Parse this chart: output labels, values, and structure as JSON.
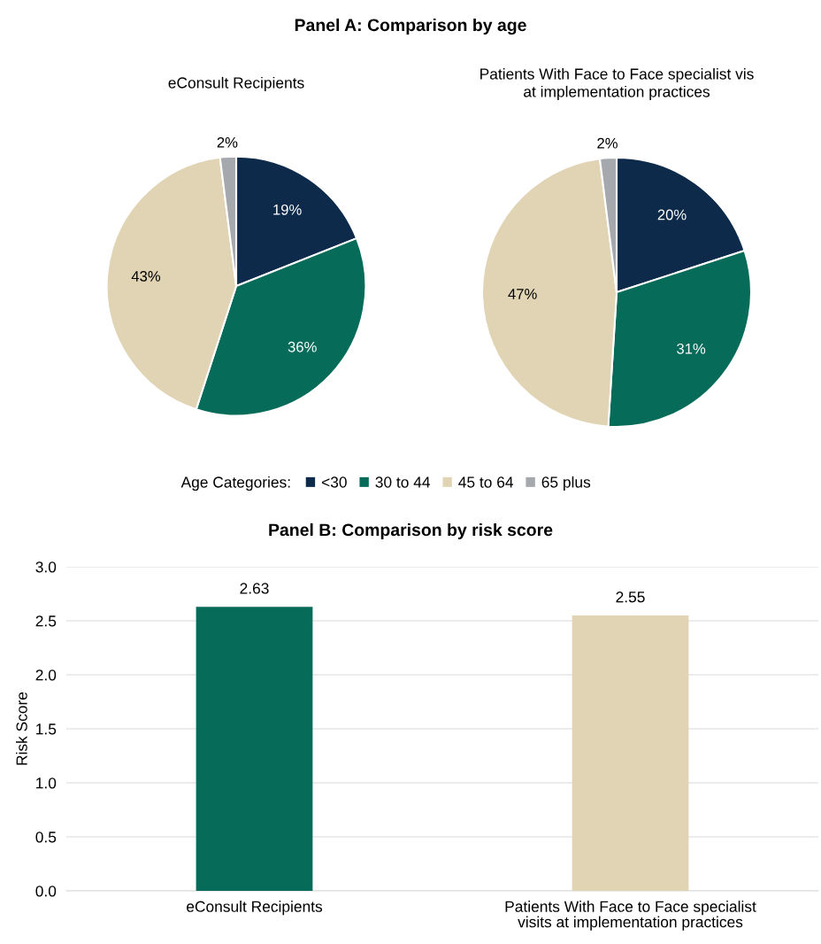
{
  "chart_data": [
    {
      "type": "pie",
      "title": "Panel A: Comparison by age",
      "subtitle": "eConsult Recipients",
      "categories": [
        "<30",
        "30 to 44",
        "45 to 64",
        "65 plus"
      ],
      "values": [
        19,
        36,
        43,
        2
      ],
      "value_labels": [
        "19%",
        "36%",
        "43%",
        "2%"
      ],
      "colors": [
        "#0d2a4a",
        "#076b5a",
        "#e0d4b5",
        "#a5a8ad"
      ],
      "legend": "bottom",
      "legend_title": "Age Categories:"
    },
    {
      "type": "pie",
      "subtitle": "Patients With Face to Face specialist vis\nat implementation practices",
      "categories": [
        null,
        null,
        null,
        null
      ],
      "values": [
        20,
        31,
        47,
        2
      ],
      "value_labels": [
        "20%",
        "31%",
        "47%",
        "2%"
      ],
      "colors": [
        "#0d2a4a",
        "#076b5a",
        "#e0d4b5",
        "#a5a8ad"
      ]
    },
    {
      "type": "bar",
      "title": "Panel B: Comparison by risk score",
      "ylabel": "Risk Score",
      "categories": [
        "eConsult Recipients",
        "Patients With Face to Face specialist\nvisits at implementation practices"
      ],
      "values": [
        2.63,
        2.55
      ],
      "colors": [
        "#076b5a",
        "#e0d4b5"
      ],
      "ylim": [
        0,
        3
      ],
      "yticks": [
        {
          "value": 0,
          "label": "0.0"
        },
        {
          "value": 0.5,
          "label": "0.5"
        },
        {
          "value": 1,
          "label": "1.0"
        },
        {
          "value": 1.5,
          "label": "1.5"
        },
        {
          "value": 2,
          "label": "2.0"
        },
        {
          "value": 2.5,
          "label": "2.5"
        },
        {
          "value": 3,
          "label": "3.0"
        }
      ],
      "grid": "y",
      "data_labels": true
    }
  ]
}
